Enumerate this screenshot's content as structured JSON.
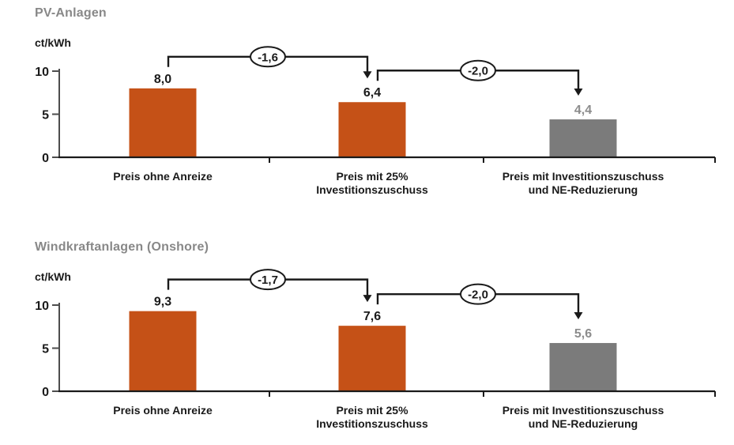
{
  "colors": {
    "bar_orange": "#C55117",
    "bar_gray": "#7B7B7B",
    "title_gray": "#888888",
    "value_gray": "#8C8C8C",
    "text_black": "#1A1A1A",
    "axis_gray": "#4D4D4D",
    "line_black": "#1A1A1A",
    "ellipse_fill": "#FFFFFF"
  },
  "chart_data": [
    {
      "type": "bar",
      "title": "PV-Anlagen",
      "ylabel": "ct/kWh",
      "ylim": [
        0,
        10
      ],
      "yticks": [
        0,
        5,
        10
      ],
      "grid": false,
      "categories": [
        [
          "Preis ohne Anreize"
        ],
        [
          "Preis mit 25%",
          "Investitionszuschuss"
        ],
        [
          "Preis mit Investitionszuschuss",
          "und NE-Reduzierung"
        ]
      ],
      "values": [
        8.0,
        6.4,
        4.4
      ],
      "value_labels": [
        "8,0",
        "6,4",
        "4,4"
      ],
      "bar_color_roles": [
        "orange",
        "orange",
        "gray"
      ],
      "value_label_roles": [
        "black",
        "black",
        "gray"
      ],
      "deltas": [
        {
          "from": 0,
          "to": 1,
          "label": "-1,6",
          "value": -1.6
        },
        {
          "from": 1,
          "to": 2,
          "label": "-2,0",
          "value": -2.0
        }
      ]
    },
    {
      "type": "bar",
      "title": "Windkraftanlagen (Onshore)",
      "ylabel": "ct/kWh",
      "ylim": [
        0,
        10
      ],
      "yticks": [
        0,
        5,
        10
      ],
      "grid": false,
      "categories": [
        [
          "Preis ohne Anreize"
        ],
        [
          "Preis mit 25%",
          "Investitionszuschuss"
        ],
        [
          "Preis mit Investitionszuschuss",
          "und NE-Reduzierung"
        ]
      ],
      "values": [
        9.3,
        7.6,
        5.6
      ],
      "value_labels": [
        "9,3",
        "7,6",
        "5,6"
      ],
      "bar_color_roles": [
        "orange",
        "orange",
        "gray"
      ],
      "value_label_roles": [
        "black",
        "black",
        "gray"
      ],
      "deltas": [
        {
          "from": 0,
          "to": 1,
          "label": "-1,7",
          "value": -1.7
        },
        {
          "from": 1,
          "to": 2,
          "label": "-2,0",
          "value": -2.0
        }
      ]
    }
  ]
}
